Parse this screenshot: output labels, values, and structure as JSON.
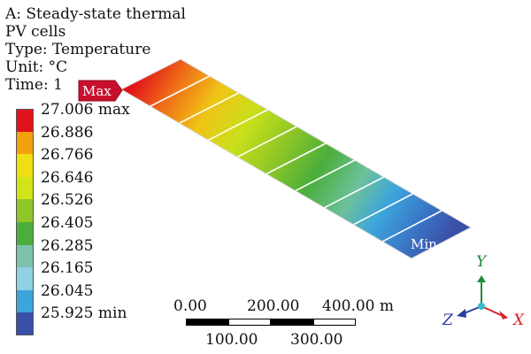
{
  "info": {
    "line1": "A: Steady-state thermal",
    "line2": "PV cells",
    "line3": "Type: Temperature",
    "line4": "Unit: °C",
    "line5": "Time: 1"
  },
  "legend": {
    "entries": [
      {
        "label": "27.006 max",
        "color": "#e2121c"
      },
      {
        "label": "26.886",
        "color": "#f5a00d"
      },
      {
        "label": "26.766",
        "color": "#f0df12"
      },
      {
        "label": "26.646",
        "color": "#d2e418"
      },
      {
        "label": "26.526",
        "color": "#8ec626"
      },
      {
        "label": "26.405",
        "color": "#4bae3c"
      },
      {
        "label": "26.285",
        "color": "#7cc2aa"
      },
      {
        "label": "26.165",
        "color": "#8fd0e4"
      },
      {
        "label": "26.045",
        "color": "#3ca4dc"
      },
      {
        "label": "25.925 min",
        "color": "#3a4fa8"
      }
    ]
  },
  "markers": {
    "max": "Max",
    "min": "Min"
  },
  "scale_bar": {
    "top_labels": [
      "0.00",
      "200.00",
      "400.00 m"
    ],
    "bottom_labels": [
      "100.00",
      "300.00"
    ]
  },
  "axes": {
    "x": "X",
    "y": "Y",
    "z": "Z"
  },
  "colors": {
    "max_marker": "#c8102e",
    "min_marker": "#2f3f9e",
    "x_axis": "#d9242b",
    "y_axis": "#1e8c3a",
    "z_axis": "#2a3ea0"
  }
}
